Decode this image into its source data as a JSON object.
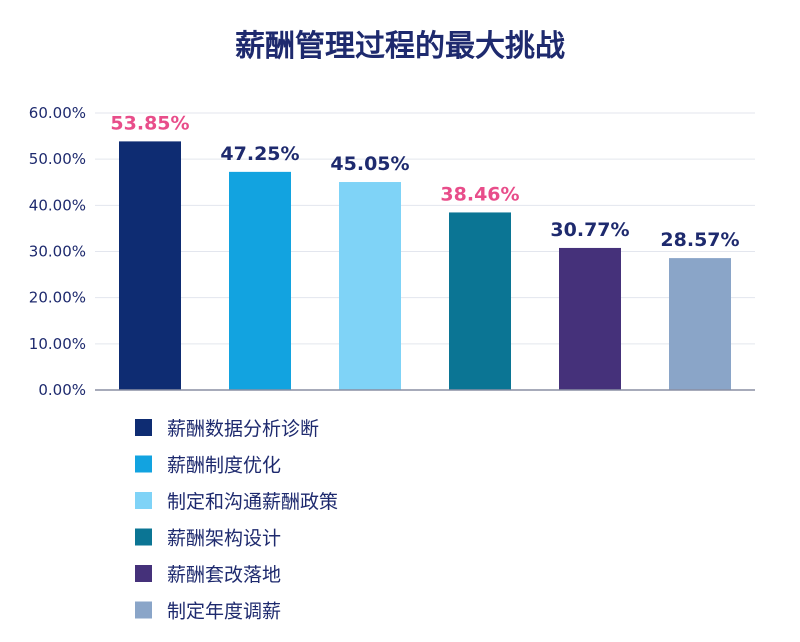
{
  "chart_data": {
    "type": "bar",
    "title": "薪酬管理过程的最大挑战",
    "xlabel": "",
    "ylabel": "",
    "ylim": [
      0,
      60
    ],
    "yticks": [
      "0.00%",
      "10.00%",
      "20.00%",
      "30.00%",
      "40.00%",
      "50.00%",
      "60.00%"
    ],
    "grid": true,
    "legend_position": "bottom-left",
    "categories": [
      "薪酬数据分析诊断",
      "薪酬制度优化",
      "制定和沟通薪酬政策",
      "薪酬架构设计",
      "薪酬套改落地",
      "制定年度调薪"
    ],
    "values": [
      53.85,
      47.25,
      45.05,
      38.46,
      30.77,
      28.57
    ],
    "value_labels": [
      "53.85%",
      "47.25%",
      "45.05%",
      "38.46%",
      "30.77%",
      "28.57%"
    ],
    "bar_colors": [
      "#0e2c72",
      "#12a3e0",
      "#7fd3f7",
      "#0b7594",
      "#45317a",
      "#8aa5c8"
    ],
    "label_colors": [
      "#e84d8a",
      "#1e2a6e",
      "#1e2a6e",
      "#e84d8a",
      "#1e2a6e",
      "#1e2a6e"
    ]
  }
}
